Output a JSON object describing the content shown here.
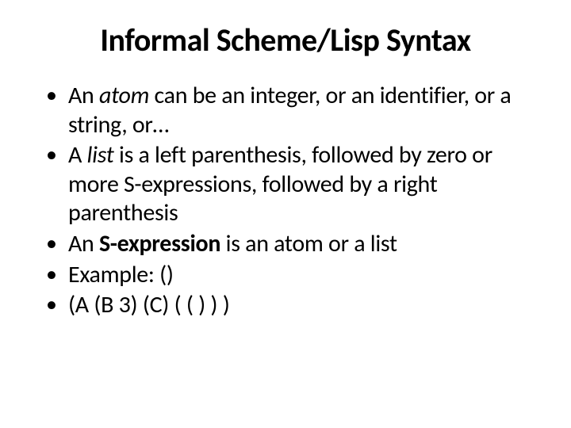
{
  "background_color": "#ffffff",
  "text_color": "#000000",
  "font_family": "Calibri",
  "title": {
    "text": "Informal Scheme/Lisp Syntax",
    "fontsize": 40,
    "weight": "bold",
    "align": "center"
  },
  "bullets": {
    "fontsize": 30,
    "marker": "•",
    "items": [
      {
        "pre": "An ",
        "em": "atom",
        "em_style": "italic",
        "post": " can be an integer, or an identifier, or a string, or…"
      },
      {
        "pre": "A ",
        "em": "list",
        "em_style": "italic",
        "post": " is a left parenthesis, followed by zero or more S-expressions, followed by a right parenthesis"
      },
      {
        "pre": "An ",
        "em": "S-expression",
        "em_style": "bold",
        "post": " is an atom or a list"
      },
      {
        "pre": "Example: ()",
        "em": "",
        "em_style": "",
        "post": ""
      },
      {
        "pre": " (A (B 3) (C) ( ( ) ) )",
        "em": "",
        "em_style": "",
        "post": ""
      }
    ]
  }
}
